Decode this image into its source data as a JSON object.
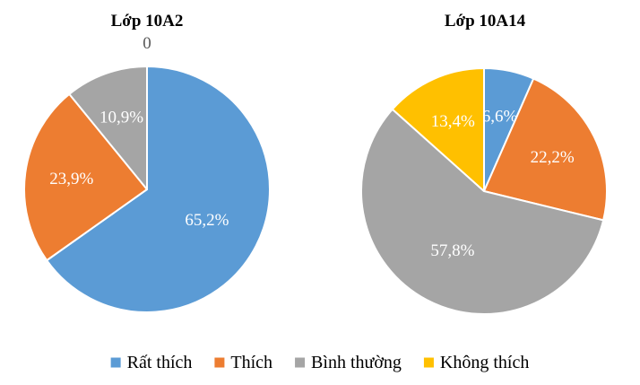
{
  "chart_data": [
    {
      "type": "pie",
      "title": "Lớp 10A2",
      "slices": [
        {
          "category": "Rất thích",
          "value": 65.2,
          "label": "65,2%",
          "label_placement": "inside"
        },
        {
          "category": "Thích",
          "value": 23.9,
          "label": "23,9%",
          "label_placement": "inside"
        },
        {
          "category": "Bình thường",
          "value": 10.9,
          "label": "10,9%",
          "label_placement": "inside"
        },
        {
          "category": "Không thích",
          "value": 0,
          "label": "0",
          "label_placement": "outside"
        }
      ]
    },
    {
      "type": "pie",
      "title": "Lớp 10A14",
      "slices": [
        {
          "category": "Rất thích",
          "value": 6.6,
          "label": "6,6%",
          "label_placement": "inside"
        },
        {
          "category": "Thích",
          "value": 22.2,
          "label": "22,2%",
          "label_placement": "inside"
        },
        {
          "category": "Bình thường",
          "value": 57.8,
          "label": "57,8%",
          "label_placement": "inside"
        },
        {
          "category": "Không thích",
          "value": 13.4,
          "label": "13,4%",
          "label_placement": "inside"
        }
      ]
    }
  ],
  "legend": {
    "position": "bottom",
    "items": [
      {
        "label": "Rất thích",
        "color": "#5b9bd5"
      },
      {
        "label": "Thích",
        "color": "#ed7d31"
      },
      {
        "label": "Bình thường",
        "color": "#a5a5a5"
      },
      {
        "label": "Không thích",
        "color": "#ffc000"
      }
    ]
  }
}
